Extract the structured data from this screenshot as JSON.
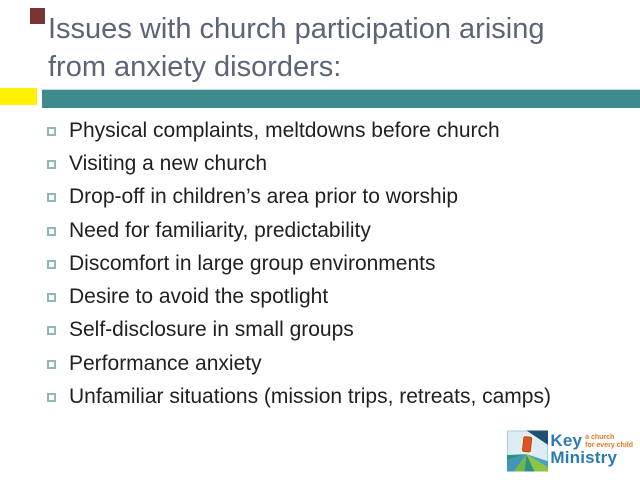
{
  "slide": {
    "title": {
      "lines": [
        "Issues with church participation arising",
        "from anxiety disorders:"
      ]
    },
    "bullets": {
      "items": [
        "Physical complaints, meltdowns before church",
        "Visiting a new church",
        "Drop-off in children’s area prior to worship",
        "Need for familiarity, predictability",
        "Discomfort in large group environments",
        "Desire to avoid the spotlight",
        "Self-disclosure in small groups",
        "Performance anxiety",
        "Unfamiliar situations (mission trips, retreats, camps)"
      ]
    },
    "logo": {
      "name": "Key Ministry",
      "word1": "Key",
      "word2": "Ministry",
      "tagline_line1": "a church",
      "tagline_line2": "for every child"
    }
  },
  "colors": {
    "title-text": "#5A6577",
    "accent-teal": "#3E8A8C",
    "accent-yellow": "#FFF200",
    "corner-maroon": "#7B3333",
    "bullet-square": "#8FB8B6",
    "body-text": "#1F1F1F",
    "logo-blue": "#2B7BB3",
    "logo-orange": "#E87722"
  }
}
